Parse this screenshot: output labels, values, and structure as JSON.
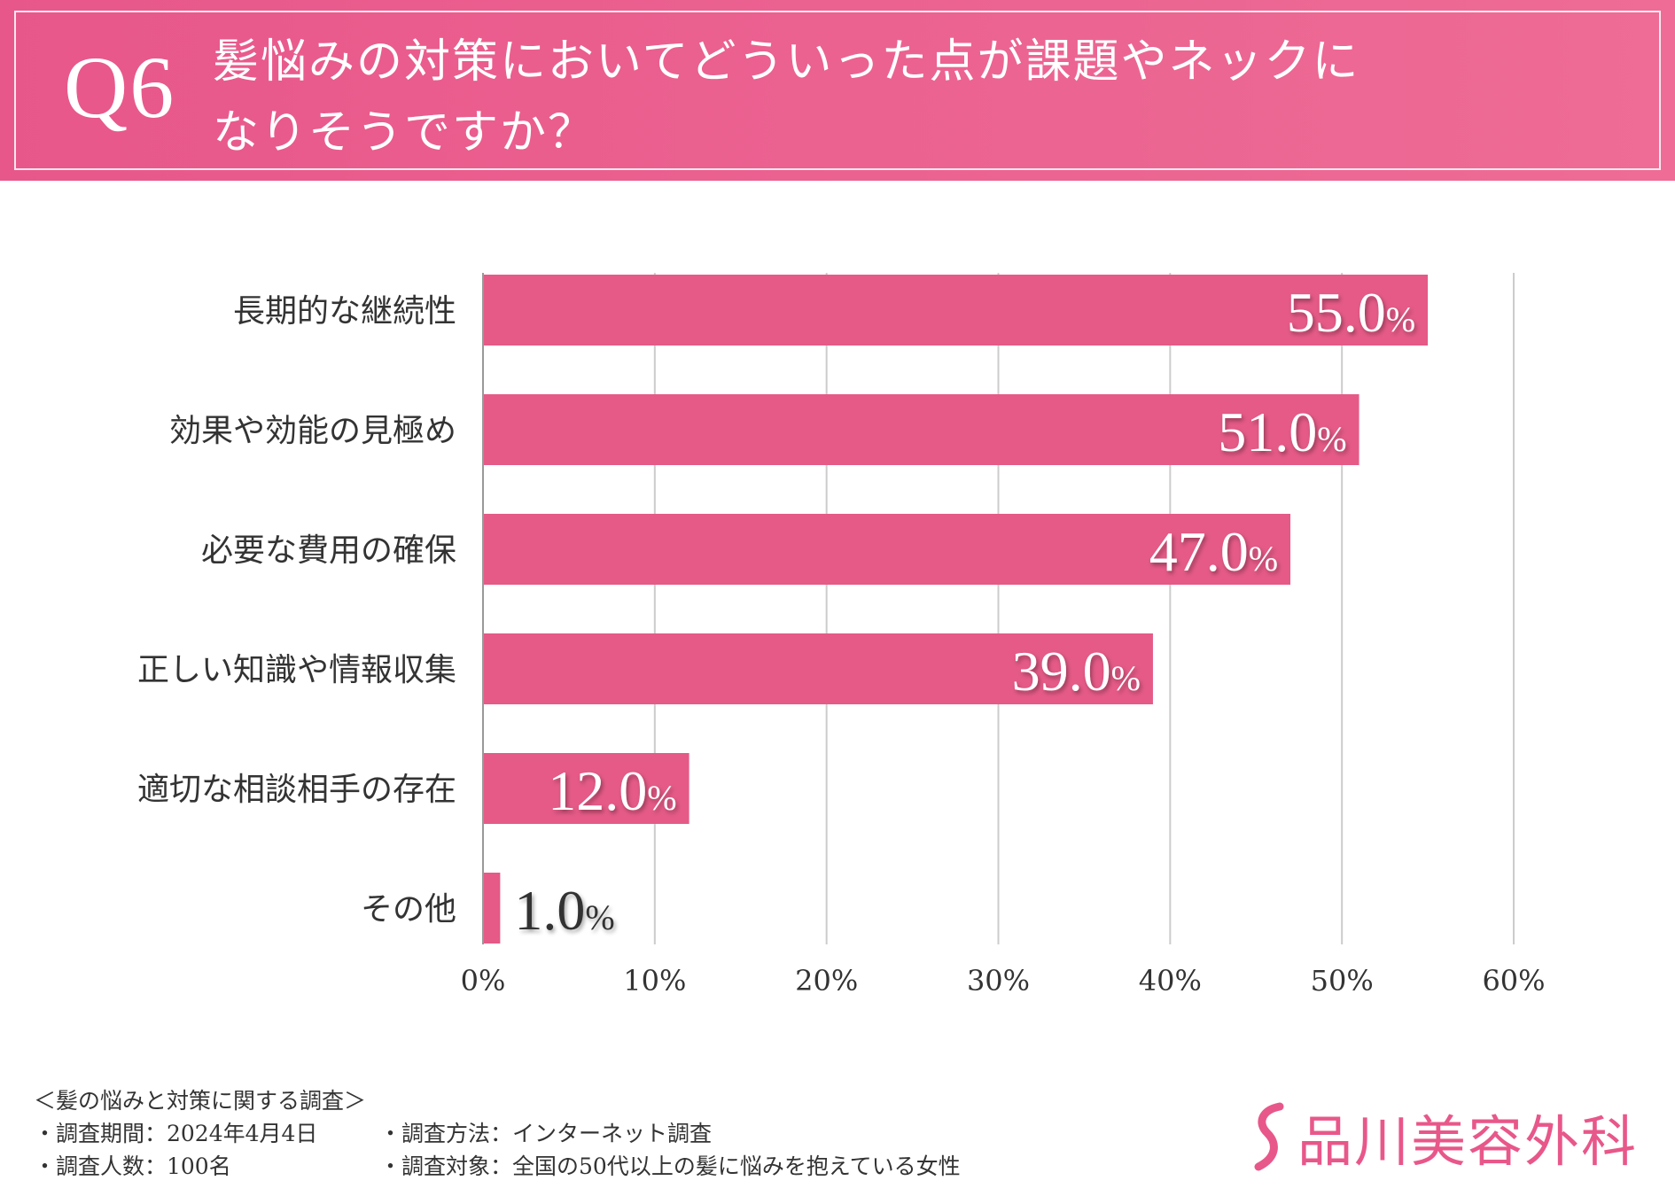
{
  "header": {
    "question_label": "Q6",
    "title": "髪悩みの対策においてどういった点が課題やネックに\nなりそうですか？"
  },
  "colors": {
    "bar": "#e55a87",
    "grid": "#cccccc",
    "axis": "#999999",
    "label_inside": "#ffffff",
    "label_outside": "#333333"
  },
  "chart_data": {
    "type": "bar",
    "orientation": "horizontal",
    "title": "髪悩みの対策においてどういった点が課題やネックになりそうですか？",
    "categories": [
      "長期的な継続性",
      "効果や効能の見極め",
      "必要な費用の確保",
      "正しい知識や情報収集",
      "適切な相談相手の存在",
      "その他"
    ],
    "values": [
      55.0,
      51.0,
      47.0,
      39.0,
      12.0,
      1.0
    ],
    "value_labels": [
      "55.0",
      "51.0",
      "47.0",
      "39.0",
      "12.0",
      "1.0"
    ],
    "value_unit": "%",
    "xlim": [
      0,
      60
    ],
    "xticks": [
      0,
      10,
      20,
      30,
      40,
      50,
      60
    ],
    "xtick_labels": [
      "0%",
      "10%",
      "20%",
      "30%",
      "40%",
      "50%",
      "60%"
    ],
    "xlabel": "",
    "ylabel": "",
    "grid": true
  },
  "footer": {
    "survey_title": "＜髪の悩みと対策に関する調査＞",
    "period": "・調査期間：2024年4月4日",
    "method": "・調査方法：インターネット調査",
    "count": "・調査人数：100名",
    "target": "・調査対象：全国の50代以上の髪に悩みを抱えている女性"
  },
  "logo": {
    "text": "品川美容外科",
    "icon": "s-curve-logo-icon"
  }
}
